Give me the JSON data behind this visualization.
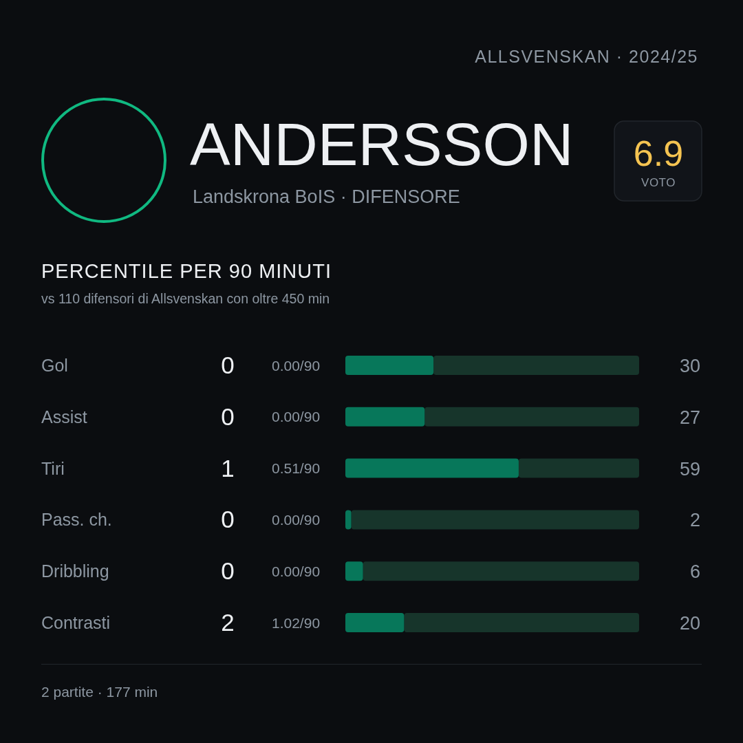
{
  "chart_data": {
    "type": "bar",
    "orientation": "horizontal",
    "title": "PERCENTILE PER 90 MINUTI",
    "subtitle": "vs 110 difensori di Allsvenskan con oltre 450 min",
    "categories": [
      "Gol",
      "Assist",
      "Tiri",
      "Pass. ch.",
      "Dribbling",
      "Contrasti"
    ],
    "values": [
      30,
      27,
      59,
      2,
      6,
      20
    ],
    "color": "#07775a",
    "xlim": [
      0,
      100
    ],
    "tick_labels": "y",
    "data_labels": true,
    "annotations": [
      "ALLSVENSKAN · 2024/25",
      "ANDERSSON",
      "Landskrona BoIS · DIFENSORE",
      "6.9",
      "VOTO",
      "2 partite · 177 min",
      "0",
      "0.00/90",
      "0",
      "0.00/90",
      "1",
      "0.51/90",
      "0",
      "0.00/90",
      "0",
      "0.00/90",
      "2",
      "1.02/90"
    ]
  }
}
